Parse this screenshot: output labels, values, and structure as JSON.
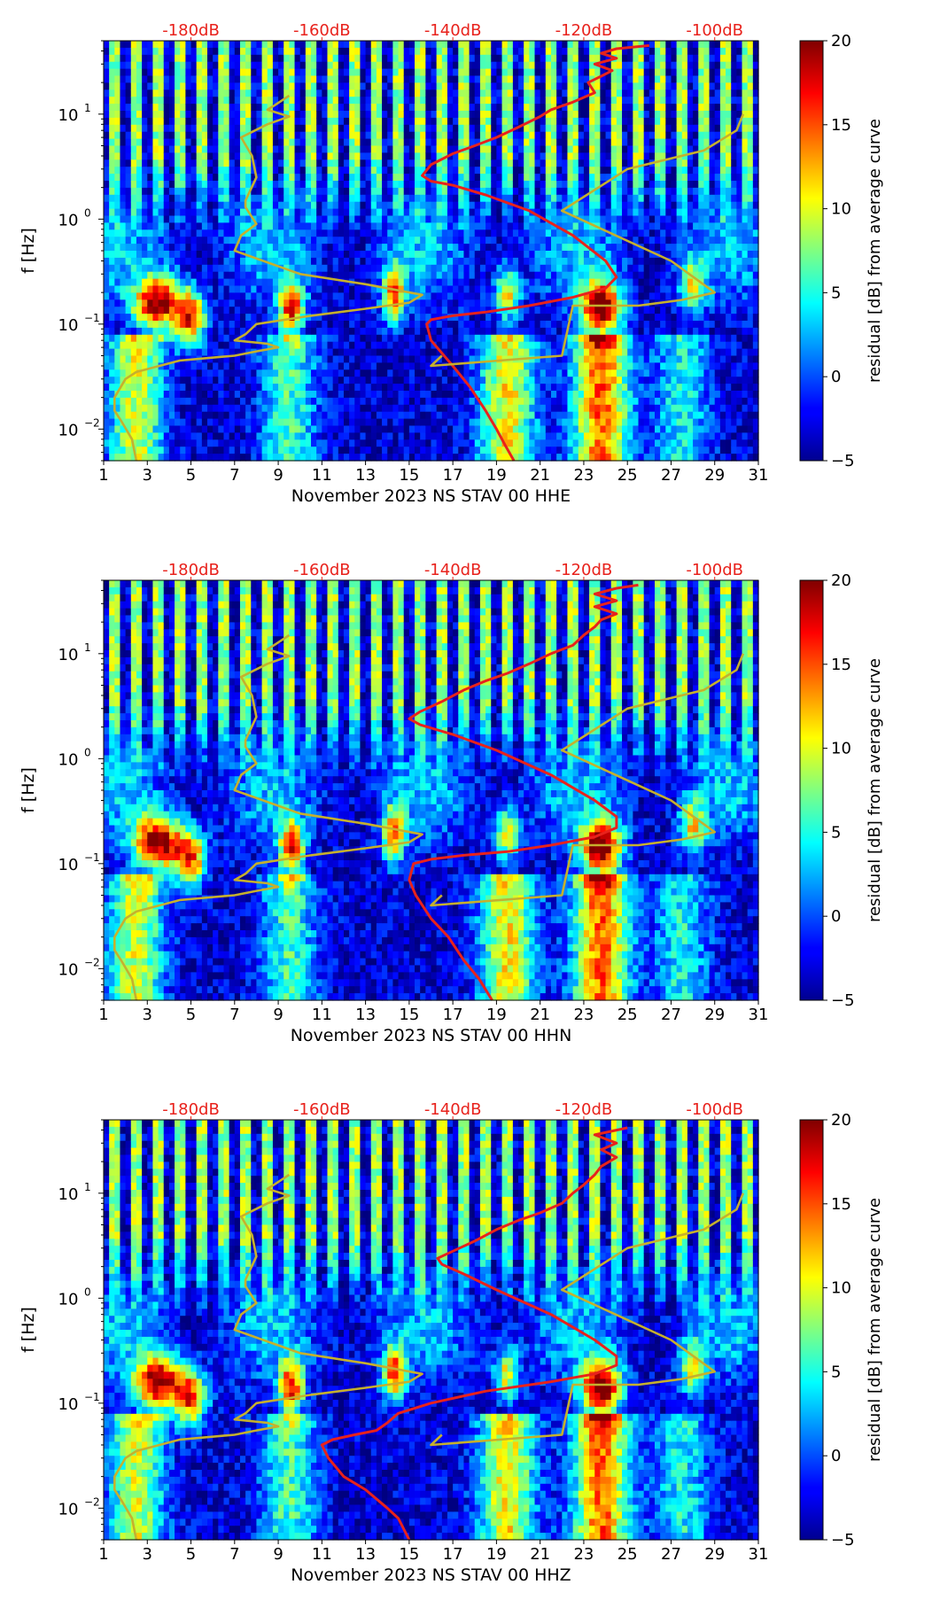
{
  "chart_data": [
    {
      "type": "heatmap",
      "subtype": "spectrogram",
      "station": "NS STAV 00 HHE",
      "xlabel": "November 2023 NS STAV 00 HHE",
      "ylabel": "f [Hz]",
      "xlim": [
        1,
        31
      ],
      "xticks": [
        "1",
        "3",
        "5",
        "7",
        "9",
        "11",
        "13",
        "15",
        "17",
        "19",
        "21",
        "23",
        "25",
        "27",
        "29",
        "31"
      ],
      "ylim": [
        0.005,
        50
      ],
      "yscale": "log",
      "yticks": [
        {
          "value": 0.01,
          "base": "10",
          "exp": "−2"
        },
        {
          "value": 0.1,
          "base": "10",
          "exp": "−1"
        },
        {
          "value": 1,
          "base": "10",
          "exp": "0"
        },
        {
          "value": 10,
          "base": "10",
          "exp": "1"
        }
      ],
      "top_axis_labels": [
        "-180dB",
        "-160dB",
        "-140dB",
        "-120dB",
        "-100dB"
      ],
      "top_axis_positions": [
        5,
        11,
        17,
        23,
        29
      ],
      "colorbar": {
        "label": "residual [dB] from average curve",
        "range": [
          -5,
          20
        ],
        "ticks": [
          "20",
          "15",
          "10",
          "5",
          "0",
          "−5"
        ],
        "colormap": "jet"
      },
      "series": [
        {
          "name": "average PSD (red)",
          "color": "#e8221c",
          "x": [
            19.8,
            19.4,
            19.0,
            18.5,
            17.8,
            17.0,
            16.0,
            15.8,
            16.0,
            17.0,
            18.5,
            20.5,
            22.5,
            24.0,
            24.5,
            24.0,
            22.5,
            20.5,
            18.5,
            17.0,
            16.0,
            15.6,
            16.0,
            17.0,
            18.0,
            19.0,
            20.0,
            21.0,
            21.5,
            22.5,
            23.5,
            23.2,
            23.8,
            24.3,
            23.5,
            24.5,
            23.8,
            24.5,
            26.0
          ],
          "y": [
            0.005,
            0.007,
            0.01,
            0.015,
            0.025,
            0.04,
            0.07,
            0.1,
            0.11,
            0.12,
            0.13,
            0.15,
            0.18,
            0.22,
            0.28,
            0.4,
            0.7,
            1.2,
            1.7,
            2.1,
            2.3,
            2.6,
            3.3,
            4.2,
            5.0,
            6.0,
            7.5,
            9.5,
            11,
            13,
            16,
            20,
            23,
            26,
            30,
            34,
            38,
            42,
            45
          ]
        },
        {
          "name": "NLNM/NHNM model (olive)",
          "color": "#c6b02d",
          "x": [
            2.5,
            2.3,
            1.8,
            1.5,
            1.5,
            2.0,
            2.5,
            4.5,
            7.0,
            8.0,
            9.0,
            8.5,
            7.0,
            7.5,
            8.0,
            10.5,
            13.0,
            15.0,
            15.6,
            13.0,
            10.0,
            7.0,
            7.3,
            8.0,
            7.5,
            7.5,
            8.0,
            7.8,
            7.3,
            8.5,
            9.5,
            8.5,
            8.8,
            9.5,
            16.5,
            16.0,
            22.0,
            22.5,
            25.5,
            27.5,
            29.0,
            27.0,
            22.0,
            25.0,
            28.5,
            30.0,
            30.3
          ],
          "y": [
            0.005,
            0.008,
            0.012,
            0.015,
            0.02,
            0.03,
            0.035,
            0.045,
            0.05,
            0.055,
            0.06,
            0.065,
            0.07,
            0.08,
            0.1,
            0.12,
            0.14,
            0.16,
            0.19,
            0.24,
            0.3,
            0.5,
            0.7,
            0.9,
            1.3,
            1.5,
            2.5,
            4.0,
            6.0,
            8.0,
            9.5,
            11,
            12,
            15,
            0.05,
            0.04,
            0.05,
            0.15,
            0.15,
            0.17,
            0.2,
            0.4,
            1.2,
            3.0,
            4.5,
            7,
            10
          ]
        }
      ]
    },
    {
      "type": "heatmap",
      "subtype": "spectrogram",
      "station": "NS STAV 00 HHN",
      "xlabel": "November 2023 NS STAV 00 HHN",
      "ylabel": "f [Hz]",
      "xlim": [
        1,
        31
      ],
      "xticks": [
        "1",
        "3",
        "5",
        "7",
        "9",
        "11",
        "13",
        "15",
        "17",
        "19",
        "21",
        "23",
        "25",
        "27",
        "29",
        "31"
      ],
      "ylim": [
        0.005,
        50
      ],
      "yscale": "log",
      "yticks": [
        {
          "value": 0.01,
          "base": "10",
          "exp": "−2"
        },
        {
          "value": 0.1,
          "base": "10",
          "exp": "−1"
        },
        {
          "value": 1,
          "base": "10",
          "exp": "0"
        },
        {
          "value": 10,
          "base": "10",
          "exp": "1"
        }
      ],
      "top_axis_labels": [
        "-180dB",
        "-160dB",
        "-140dB",
        "-120dB",
        "-100dB"
      ],
      "top_axis_positions": [
        5,
        11,
        17,
        23,
        29
      ],
      "colorbar": {
        "label": "residual [dB] from average curve",
        "range": [
          -5,
          20
        ],
        "ticks": [
          "20",
          "15",
          "10",
          "5",
          "0",
          "−5"
        ],
        "colormap": "jet"
      },
      "series": [
        {
          "name": "average PSD (red)",
          "color": "#e8221c",
          "x": [
            18.8,
            18.2,
            17.5,
            16.8,
            16.0,
            15.3,
            15.0,
            15.2,
            16.0,
            17.5,
            19.5,
            21.5,
            23.5,
            24.5,
            24.5,
            23.5,
            21.5,
            19.0,
            17.0,
            15.5,
            15.0,
            15.5,
            16.5,
            17.5,
            18.5,
            19.5,
            20.5,
            21.5,
            22.5,
            23.0,
            23.5,
            23.8,
            24.5,
            23.5,
            24.5,
            23.5,
            24.5,
            25.5
          ],
          "y": [
            0.005,
            0.008,
            0.012,
            0.02,
            0.03,
            0.05,
            0.07,
            0.1,
            0.11,
            0.12,
            0.13,
            0.15,
            0.18,
            0.22,
            0.28,
            0.4,
            0.7,
            1.2,
            1.7,
            2.1,
            2.4,
            2.8,
            3.5,
            4.5,
            5.5,
            6.5,
            8,
            10,
            12,
            15,
            18,
            21,
            24,
            28,
            32,
            37,
            42,
            45
          ]
        },
        {
          "name": "NLNM/NHNM model (olive)",
          "color": "#c6b02d",
          "x": [
            2.5,
            2.3,
            1.8,
            1.5,
            1.5,
            2.0,
            2.5,
            4.5,
            7.0,
            8.0,
            9.0,
            8.5,
            7.0,
            7.5,
            8.0,
            10.5,
            13.0,
            15.0,
            15.6,
            13.0,
            10.0,
            7.0,
            7.3,
            8.0,
            7.5,
            7.5,
            8.0,
            7.8,
            7.3,
            8.5,
            9.5,
            8.5,
            8.8,
            9.5,
            16.5,
            16.0,
            22.0,
            22.5,
            25.5,
            27.5,
            29.0,
            27.0,
            22.0,
            25.0,
            28.5,
            30.0,
            30.3
          ],
          "y": [
            0.005,
            0.008,
            0.012,
            0.015,
            0.02,
            0.03,
            0.035,
            0.045,
            0.05,
            0.055,
            0.06,
            0.065,
            0.07,
            0.08,
            0.1,
            0.12,
            0.14,
            0.16,
            0.19,
            0.24,
            0.3,
            0.5,
            0.7,
            0.9,
            1.3,
            1.5,
            2.5,
            4.0,
            6.0,
            8.0,
            9.5,
            11,
            12,
            15,
            0.05,
            0.04,
            0.05,
            0.15,
            0.15,
            0.17,
            0.2,
            0.4,
            1.2,
            3.0,
            4.5,
            7,
            10
          ]
        }
      ]
    },
    {
      "type": "heatmap",
      "subtype": "spectrogram",
      "station": "NS STAV 00 HHZ",
      "xlabel": "November 2023 NS STAV 00 HHZ",
      "ylabel": "f [Hz]",
      "xlim": [
        1,
        31
      ],
      "xticks": [
        "1",
        "3",
        "5",
        "7",
        "9",
        "11",
        "13",
        "15",
        "17",
        "19",
        "21",
        "23",
        "25",
        "27",
        "29",
        "31"
      ],
      "ylim": [
        0.005,
        50
      ],
      "yscale": "log",
      "yticks": [
        {
          "value": 0.01,
          "base": "10",
          "exp": "−2"
        },
        {
          "value": 0.1,
          "base": "10",
          "exp": "−1"
        },
        {
          "value": 1,
          "base": "10",
          "exp": "0"
        },
        {
          "value": 10,
          "base": "10",
          "exp": "1"
        }
      ],
      "top_axis_labels": [
        "-180dB",
        "-160dB",
        "-140dB",
        "-120dB",
        "-100dB"
      ],
      "top_axis_positions": [
        5,
        11,
        17,
        23,
        29
      ],
      "colorbar": {
        "label": "residual [dB] from average curve",
        "range": [
          -5,
          20
        ],
        "ticks": [
          "20",
          "15",
          "10",
          "5",
          "0",
          "−5"
        ],
        "colormap": "jet"
      },
      "series": [
        {
          "name": "average PSD (red)",
          "color": "#e8221c",
          "x": [
            15.0,
            14.5,
            14.0,
            13.0,
            12.0,
            11.3,
            11.0,
            11.5,
            12.5,
            13.5,
            14.0,
            14.5,
            16.0,
            18.5,
            21.5,
            23.5,
            24.5,
            24.5,
            23.5,
            21.5,
            19.0,
            17.5,
            16.5,
            16.3,
            17.0,
            18.0,
            19.0,
            20.0,
            21.0,
            22.0,
            22.5,
            23.0,
            23.5,
            23.8,
            24.5,
            23.8,
            24.5,
            23.5,
            25.0
          ],
          "y": [
            0.005,
            0.008,
            0.01,
            0.015,
            0.02,
            0.03,
            0.04,
            0.045,
            0.05,
            0.055,
            0.065,
            0.08,
            0.1,
            0.13,
            0.16,
            0.19,
            0.23,
            0.28,
            0.4,
            0.7,
            1.2,
            1.7,
            2.1,
            2.4,
            2.8,
            3.5,
            4.5,
            5.5,
            6.5,
            8,
            10,
            12,
            15,
            18,
            22,
            26,
            30,
            36,
            42
          ]
        },
        {
          "name": "NLNM/NHNM model (olive)",
          "color": "#c6b02d",
          "x": [
            2.5,
            2.3,
            1.8,
            1.5,
            1.5,
            2.0,
            2.5,
            4.5,
            7.0,
            8.0,
            9.0,
            8.5,
            7.0,
            7.5,
            8.0,
            10.5,
            13.0,
            15.0,
            15.6,
            13.0,
            10.0,
            7.0,
            7.3,
            8.0,
            7.5,
            7.5,
            8.0,
            7.8,
            7.3,
            8.5,
            9.5,
            8.5,
            8.8,
            9.5,
            16.5,
            16.0,
            22.0,
            22.5,
            25.5,
            27.5,
            29.0,
            27.0,
            22.0,
            25.0,
            28.5,
            30.0,
            30.3
          ],
          "y": [
            0.005,
            0.008,
            0.012,
            0.015,
            0.02,
            0.03,
            0.035,
            0.045,
            0.05,
            0.055,
            0.06,
            0.065,
            0.07,
            0.08,
            0.1,
            0.12,
            0.14,
            0.16,
            0.19,
            0.24,
            0.3,
            0.5,
            0.7,
            0.9,
            1.3,
            1.5,
            2.5,
            4.0,
            6.0,
            8.0,
            9.5,
            11,
            12,
            15,
            0.05,
            0.04,
            0.05,
            0.15,
            0.15,
            0.17,
            0.2,
            0.4,
            1.2,
            3.0,
            4.5,
            7,
            10
          ]
        }
      ]
    }
  ],
  "colors": {
    "red_curve": "#e8221c",
    "olive_curve": "#c6b02d",
    "top_labels": "#e8221c",
    "background": "#ffffff"
  }
}
